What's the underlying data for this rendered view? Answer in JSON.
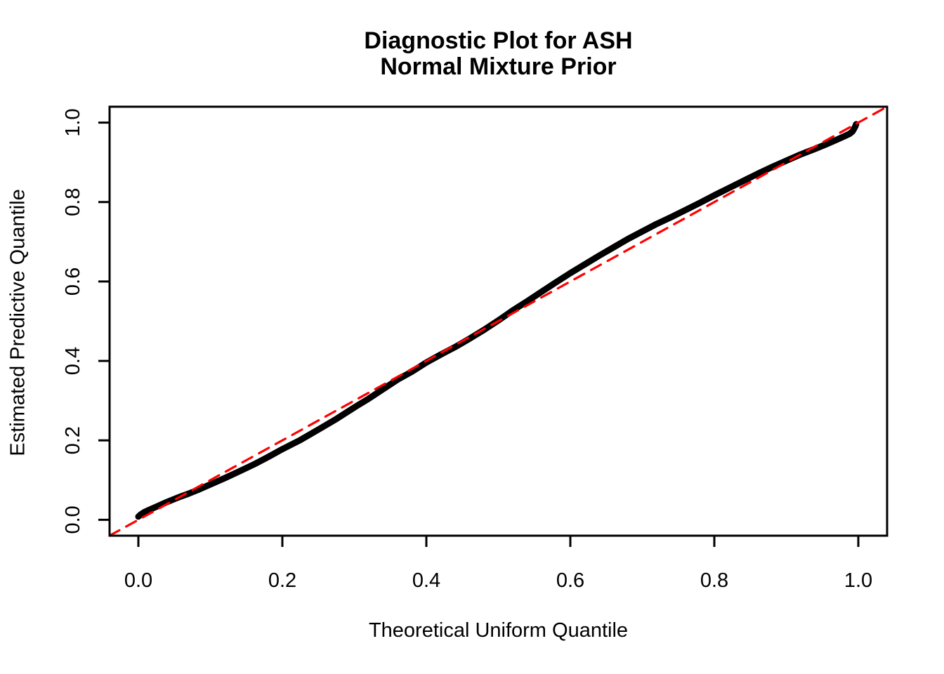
{
  "window": {
    "background_color": "#ffffff"
  },
  "chart_data": {
    "type": "line",
    "title_line1": "Diagnostic Plot for ASH",
    "title_line2": "Normal Mixture Prior",
    "xlabel": "Theoretical Uniform Quantile",
    "ylabel": "Estimated Predictive Quantile",
    "x_ticks": [
      0.0,
      0.2,
      0.4,
      0.6,
      0.8,
      1.0
    ],
    "x_tick_labels": [
      "0.0",
      "0.2",
      "0.4",
      "0.6",
      "0.8",
      "1.0"
    ],
    "y_ticks": [
      0.0,
      0.2,
      0.4,
      0.6,
      0.8,
      1.0
    ],
    "y_tick_labels": [
      "0.0",
      "0.2",
      "0.4",
      "0.6",
      "0.8",
      "1.0"
    ],
    "xlim": [
      -0.04,
      1.04
    ],
    "ylim": [
      -0.04,
      1.04
    ],
    "grid": false,
    "legend": "none",
    "colors": {
      "curve": "#000000",
      "reference_line": "#FF0000",
      "axis": "#000000",
      "text": "#000000"
    },
    "series": [
      {
        "name": "estimated-predictive-quantiles",
        "style": "solid-thick",
        "color": "#000000",
        "points": [
          [
            0.0,
            0.008
          ],
          [
            0.003,
            0.013
          ],
          [
            0.008,
            0.019
          ],
          [
            0.015,
            0.025
          ],
          [
            0.025,
            0.033
          ],
          [
            0.04,
            0.045
          ],
          [
            0.055,
            0.056
          ],
          [
            0.07,
            0.066
          ],
          [
            0.085,
            0.077
          ],
          [
            0.1,
            0.089
          ],
          [
            0.12,
            0.105
          ],
          [
            0.14,
            0.122
          ],
          [
            0.16,
            0.139
          ],
          [
            0.18,
            0.158
          ],
          [
            0.2,
            0.178
          ],
          [
            0.225,
            0.201
          ],
          [
            0.25,
            0.227
          ],
          [
            0.275,
            0.254
          ],
          [
            0.3,
            0.283
          ],
          [
            0.32,
            0.305
          ],
          [
            0.34,
            0.329
          ],
          [
            0.36,
            0.353
          ],
          [
            0.38,
            0.373
          ],
          [
            0.4,
            0.396
          ],
          [
            0.42,
            0.416
          ],
          [
            0.44,
            0.435
          ],
          [
            0.46,
            0.456
          ],
          [
            0.48,
            0.478
          ],
          [
            0.5,
            0.502
          ],
          [
            0.52,
            0.527
          ],
          [
            0.54,
            0.55
          ],
          [
            0.56,
            0.574
          ],
          [
            0.58,
            0.598
          ],
          [
            0.6,
            0.621
          ],
          [
            0.62,
            0.643
          ],
          [
            0.64,
            0.665
          ],
          [
            0.66,
            0.686
          ],
          [
            0.68,
            0.707
          ],
          [
            0.7,
            0.726
          ],
          [
            0.72,
            0.745
          ],
          [
            0.74,
            0.762
          ],
          [
            0.76,
            0.78
          ],
          [
            0.78,
            0.798
          ],
          [
            0.8,
            0.817
          ],
          [
            0.82,
            0.835
          ],
          [
            0.84,
            0.853
          ],
          [
            0.86,
            0.871
          ],
          [
            0.88,
            0.888
          ],
          [
            0.9,
            0.904
          ],
          [
            0.92,
            0.92
          ],
          [
            0.94,
            0.934
          ],
          [
            0.955,
            0.945
          ],
          [
            0.97,
            0.957
          ],
          [
            0.98,
            0.965
          ],
          [
            0.988,
            0.972
          ],
          [
            0.992,
            0.978
          ],
          [
            0.994,
            0.984
          ],
          [
            0.996,
            0.991
          ],
          [
            0.997,
            0.996
          ]
        ]
      },
      {
        "name": "reference-identity-line",
        "style": "dashed",
        "color": "#FF0000",
        "points": [
          [
            -0.04,
            -0.04
          ],
          [
            1.04,
            1.04
          ]
        ]
      }
    ]
  }
}
